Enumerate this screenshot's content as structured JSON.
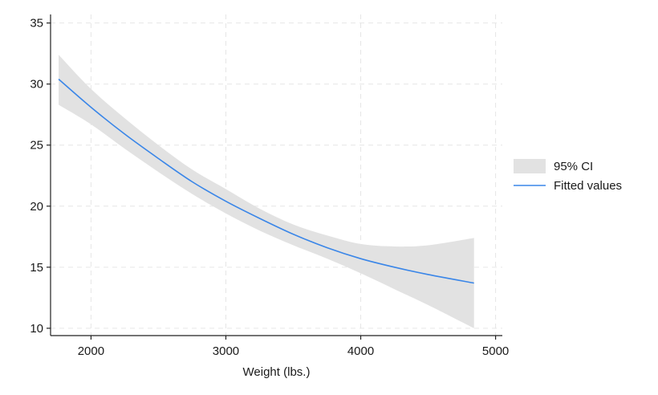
{
  "chart_data": {
    "type": "line",
    "title": "",
    "xlabel": "Weight (lbs.)",
    "ylabel": "",
    "xlim": [
      1700,
      5050
    ],
    "ylim": [
      9.4,
      35.7
    ],
    "xticks": [
      2000,
      3000,
      4000,
      5000
    ],
    "yticks": [
      10,
      15,
      20,
      25,
      30,
      35
    ],
    "grid": true,
    "legend_position": "right",
    "series": [
      {
        "name": "Fitted values",
        "kind": "line",
        "color": "#3a86e8",
        "x": [
          1760,
          2000,
          2250,
          2500,
          2750,
          3000,
          3250,
          3500,
          3750,
          4000,
          4250,
          4500,
          4840
        ],
        "y": [
          30.4,
          28.1,
          25.9,
          23.9,
          22.0,
          20.4,
          19.0,
          17.7,
          16.6,
          15.7,
          15.0,
          14.4,
          13.7
        ]
      },
      {
        "name": "95% CI",
        "kind": "band",
        "color": "#e2e2e2",
        "x": [
          1760,
          2000,
          2250,
          2500,
          2750,
          3000,
          3250,
          3500,
          3750,
          4000,
          4250,
          4500,
          4840
        ],
        "lower": [
          28.3,
          26.7,
          24.7,
          22.8,
          21.0,
          19.4,
          18.0,
          16.8,
          15.7,
          14.5,
          13.2,
          11.9,
          10.0
        ],
        "upper": [
          32.4,
          29.6,
          27.2,
          25.0,
          23.0,
          21.4,
          19.8,
          18.5,
          17.6,
          16.9,
          16.7,
          16.8,
          17.4
        ]
      }
    ]
  }
}
